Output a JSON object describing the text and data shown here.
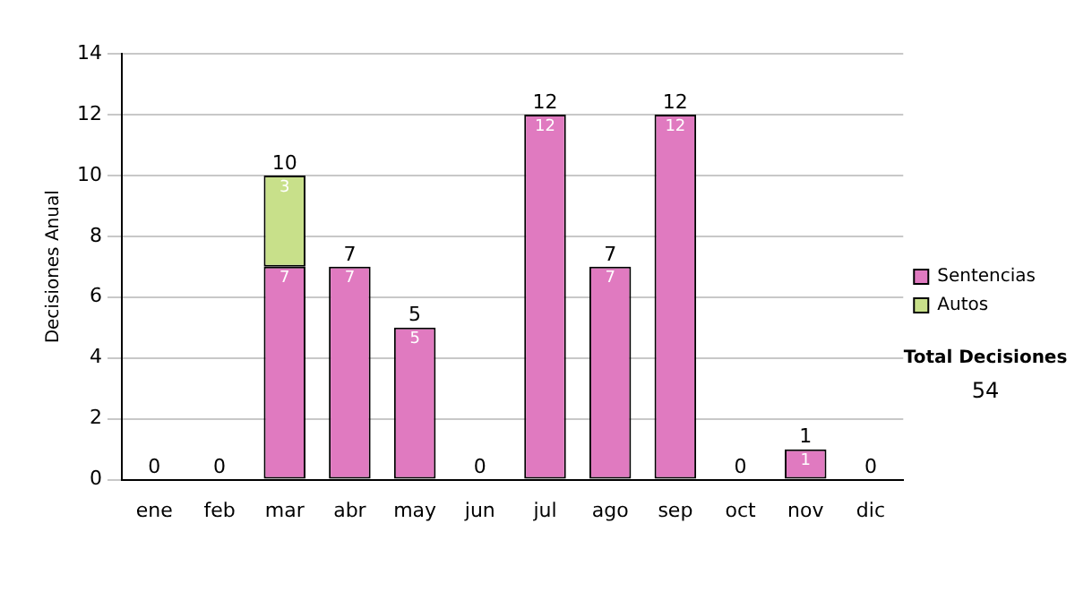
{
  "chart_data": {
    "type": "bar",
    "ylabel": "Decisiones Anual",
    "categories": [
      "ene",
      "feb",
      "mar",
      "abr",
      "may",
      "jun",
      "jul",
      "ago",
      "sep",
      "oct",
      "nov",
      "dic"
    ],
    "series": [
      {
        "name": "Sentencias",
        "color": "#e07ac0",
        "values": [
          0,
          0,
          7,
          7,
          5,
          0,
          12,
          7,
          12,
          0,
          1,
          0
        ],
        "value_labels": [
          null,
          null,
          "7",
          "7",
          "5",
          null,
          "12",
          "7",
          "12",
          null,
          "1",
          null
        ]
      },
      {
        "name": "Autos",
        "color": "#c8e08a",
        "values": [
          0,
          0,
          3,
          0,
          0,
          0,
          0,
          0,
          0,
          0,
          0,
          0
        ],
        "value_labels": [
          null,
          null,
          "3",
          null,
          null,
          null,
          null,
          null,
          null,
          null,
          null,
          null
        ]
      }
    ],
    "stacked": true,
    "totals": [
      "0",
      "0",
      "10",
      "7",
      "5",
      "0",
      "12",
      "7",
      "12",
      "0",
      "1",
      "0"
    ],
    "ylim": [
      0,
      14
    ],
    "yticks": [
      0,
      2,
      4,
      6,
      8,
      10,
      12,
      14
    ],
    "grid": "y",
    "legend": "right",
    "annotations": [
      "Total Decisiones",
      "54"
    ]
  }
}
